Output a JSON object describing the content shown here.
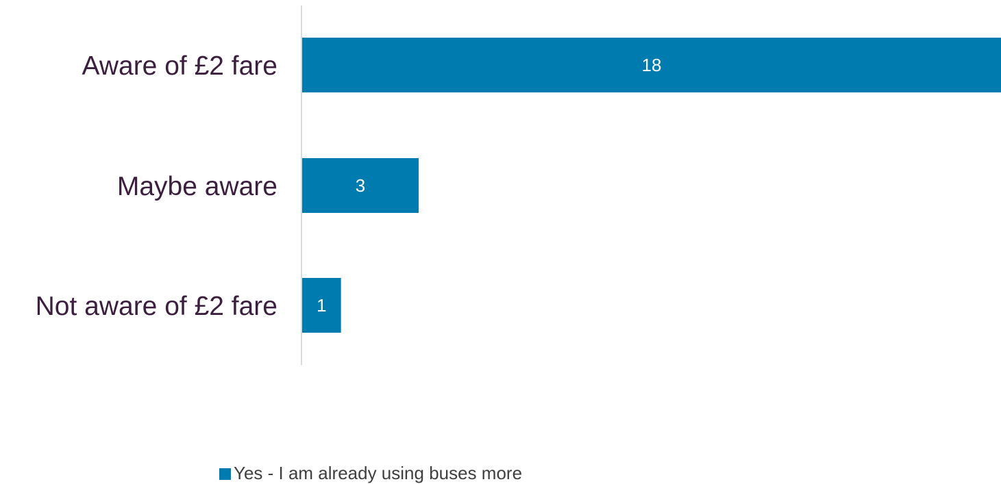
{
  "chart_data": {
    "type": "bar",
    "orientation": "horizontal",
    "categories": [
      "Aware of £2 fare",
      "Maybe aware",
      "Not aware of £2 fare"
    ],
    "series": [
      {
        "name": "Yes - I am already using buses more",
        "values": [
          18,
          3,
          1
        ],
        "color": "#007bb0"
      }
    ],
    "xlim": [
      0,
      18
    ],
    "grid": false,
    "data_labels": true,
    "legend_position": "bottom"
  }
}
